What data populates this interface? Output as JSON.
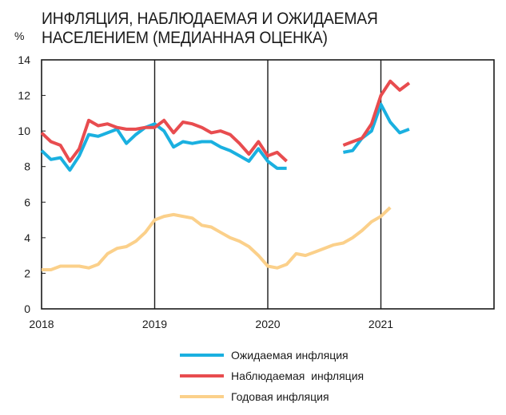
{
  "chart_data": {
    "type": "line",
    "title": "ИНФЛЯЦИЯ, НАБЛЮДАЕМАЯ И ОЖИДАЕМАЯ\nНАСЕЛЕНИЕМ (МЕДИАННАЯ ОЦЕНКА)",
    "ylabel": "%",
    "ylim": [
      0,
      14
    ],
    "yticks": [
      "0",
      "2",
      "4",
      "6",
      "8",
      "10",
      "12",
      "14"
    ],
    "xlim": [
      2018.0,
      2022.0
    ],
    "xticks": [
      "2018",
      "2019",
      "2020",
      "2021"
    ],
    "grid": "vertical at year boundaries",
    "legend_position": "bottom",
    "series": [
      {
        "name": "Ожидаемая инфляция",
        "color": "#1ab0e0",
        "points": [
          [
            2018.0,
            8.9
          ],
          [
            2018.083,
            8.4
          ],
          [
            2018.167,
            8.5
          ],
          [
            2018.25,
            7.8
          ],
          [
            2018.333,
            8.6
          ],
          [
            2018.417,
            9.8
          ],
          [
            2018.5,
            9.7
          ],
          [
            2018.583,
            9.9
          ],
          [
            2018.667,
            10.1
          ],
          [
            2018.75,
            9.3
          ],
          [
            2018.833,
            9.8
          ],
          [
            2018.917,
            10.2
          ],
          [
            2019.0,
            10.4
          ],
          [
            2019.083,
            10.0
          ],
          [
            2019.167,
            9.1
          ],
          [
            2019.25,
            9.4
          ],
          [
            2019.333,
            9.3
          ],
          [
            2019.417,
            9.4
          ],
          [
            2019.5,
            9.4
          ],
          [
            2019.583,
            9.1
          ],
          [
            2019.667,
            8.9
          ],
          [
            2019.75,
            8.6
          ],
          [
            2019.833,
            8.3
          ],
          [
            2019.917,
            9.0
          ],
          [
            2020.0,
            8.3
          ],
          [
            2020.083,
            7.9
          ],
          [
            2020.167,
            7.9
          ],
          null,
          [
            2020.667,
            8.8
          ],
          [
            2020.75,
            8.9
          ],
          [
            2020.833,
            9.6
          ],
          [
            2020.917,
            10.0
          ],
          [
            2021.0,
            11.5
          ],
          [
            2021.083,
            10.5
          ],
          [
            2021.167,
            9.9
          ],
          [
            2021.25,
            10.1
          ]
        ]
      },
      {
        "name": "Наблюдаемая  инфляция",
        "color": "#e84c4f",
        "points": [
          [
            2018.0,
            9.9
          ],
          [
            2018.083,
            9.4
          ],
          [
            2018.167,
            9.2
          ],
          [
            2018.25,
            8.3
          ],
          [
            2018.333,
            9.0
          ],
          [
            2018.417,
            10.6
          ],
          [
            2018.5,
            10.3
          ],
          [
            2018.583,
            10.4
          ],
          [
            2018.667,
            10.2
          ],
          [
            2018.75,
            10.1
          ],
          [
            2018.833,
            10.1
          ],
          [
            2018.917,
            10.2
          ],
          [
            2019.0,
            10.2
          ],
          [
            2019.083,
            10.6
          ],
          [
            2019.167,
            9.9
          ],
          [
            2019.25,
            10.5
          ],
          [
            2019.333,
            10.4
          ],
          [
            2019.417,
            10.2
          ],
          [
            2019.5,
            9.9
          ],
          [
            2019.583,
            10.0
          ],
          [
            2019.667,
            9.8
          ],
          [
            2019.75,
            9.3
          ],
          [
            2019.833,
            8.7
          ],
          [
            2019.917,
            9.4
          ],
          [
            2020.0,
            8.6
          ],
          [
            2020.083,
            8.8
          ],
          [
            2020.167,
            8.3
          ],
          null,
          [
            2020.667,
            9.2
          ],
          [
            2020.75,
            9.4
          ],
          [
            2020.833,
            9.6
          ],
          [
            2020.917,
            10.4
          ],
          [
            2021.0,
            12.0
          ],
          [
            2021.083,
            12.8
          ],
          [
            2021.167,
            12.3
          ],
          [
            2021.25,
            12.7
          ]
        ]
      },
      {
        "name": "Годовая инфляция",
        "color": "#fbd08a",
        "points": [
          [
            2018.0,
            2.2
          ],
          [
            2018.083,
            2.2
          ],
          [
            2018.167,
            2.4
          ],
          [
            2018.25,
            2.4
          ],
          [
            2018.333,
            2.4
          ],
          [
            2018.417,
            2.3
          ],
          [
            2018.5,
            2.5
          ],
          [
            2018.583,
            3.1
          ],
          [
            2018.667,
            3.4
          ],
          [
            2018.75,
            3.5
          ],
          [
            2018.833,
            3.8
          ],
          [
            2018.917,
            4.3
          ],
          [
            2019.0,
            5.0
          ],
          [
            2019.083,
            5.2
          ],
          [
            2019.167,
            5.3
          ],
          [
            2019.25,
            5.2
          ],
          [
            2019.333,
            5.1
          ],
          [
            2019.417,
            4.7
          ],
          [
            2019.5,
            4.6
          ],
          [
            2019.583,
            4.3
          ],
          [
            2019.667,
            4.0
          ],
          [
            2019.75,
            3.8
          ],
          [
            2019.833,
            3.5
          ],
          [
            2019.917,
            3.0
          ],
          [
            2020.0,
            2.4
          ],
          [
            2020.083,
            2.3
          ],
          [
            2020.167,
            2.5
          ],
          [
            2020.25,
            3.1
          ],
          [
            2020.333,
            3.0
          ],
          [
            2020.417,
            3.2
          ],
          [
            2020.5,
            3.4
          ],
          [
            2020.583,
            3.6
          ],
          [
            2020.667,
            3.7
          ],
          [
            2020.75,
            4.0
          ],
          [
            2020.833,
            4.4
          ],
          [
            2020.917,
            4.9
          ],
          [
            2021.0,
            5.2
          ],
          [
            2021.083,
            5.7
          ]
        ]
      }
    ]
  }
}
